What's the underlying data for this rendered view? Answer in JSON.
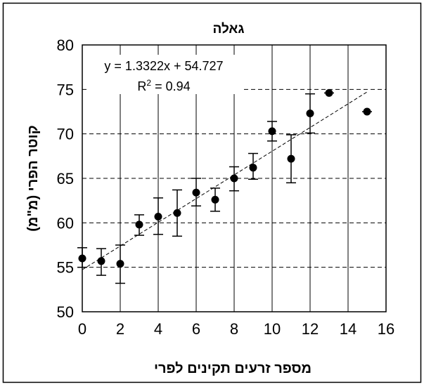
{
  "chart_data": {
    "type": "scatter",
    "title": "גאלה",
    "xlabel": "מספר זרעים תקינים לפרי",
    "ylabel": "קוטר הפרי (מ\"מ)",
    "xlim": [
      0,
      16
    ],
    "ylim": [
      50,
      80
    ],
    "x_ticks": [
      "0",
      "2",
      "4",
      "6",
      "8",
      "10",
      "12",
      "14",
      "16"
    ],
    "y_ticks": [
      "50",
      "55",
      "60",
      "65",
      "70",
      "75",
      "80"
    ],
    "grid": {
      "horizontal": "dashed",
      "vertical": "solid"
    },
    "equation": "y = 1.3322x + 54.727",
    "r2_prefix": "R",
    "r2_sup": "2",
    "r2_value": " = 0.94",
    "trendline": {
      "slope": 1.3322,
      "intercept": 54.727,
      "x_range": [
        0,
        15
      ]
    },
    "series": [
      {
        "points": [
          {
            "x": 0,
            "y": 56.0,
            "err_low": 55.0,
            "err_high": 57.2
          },
          {
            "x": 1,
            "y": 55.7,
            "err_low": 54.1,
            "err_high": 57.1
          },
          {
            "x": 2,
            "y": 55.4,
            "err_low": 53.2,
            "err_high": 57.5
          },
          {
            "x": 3,
            "y": 59.8,
            "err_low": 58.6,
            "err_high": 60.9
          },
          {
            "x": 4,
            "y": 60.7,
            "err_low": 58.7,
            "err_high": 62.8
          },
          {
            "x": 5,
            "y": 61.1,
            "err_low": 58.5,
            "err_high": 63.7
          },
          {
            "x": 6,
            "y": 63.4,
            "err_low": 61.9,
            "err_high": 65.0
          },
          {
            "x": 7,
            "y": 62.6,
            "err_low": 61.3,
            "err_high": 63.9
          },
          {
            "x": 8,
            "y": 65.0,
            "err_low": 63.6,
            "err_high": 66.3
          },
          {
            "x": 9,
            "y": 66.2,
            "err_low": 64.9,
            "err_high": 67.8
          },
          {
            "x": 10,
            "y": 70.3,
            "err_low": 69.2,
            "err_high": 71.4
          },
          {
            "x": 11,
            "y": 67.2,
            "err_low": 64.5,
            "err_high": 69.9
          },
          {
            "x": 12,
            "y": 72.3,
            "err_low": 70.1,
            "err_high": 74.5
          },
          {
            "x": 13,
            "y": 74.6,
            "err_low": 74.6,
            "err_high": 74.6
          },
          {
            "x": 15,
            "y": 72.5,
            "err_low": 72.5,
            "err_high": 72.5
          }
        ]
      }
    ]
  }
}
